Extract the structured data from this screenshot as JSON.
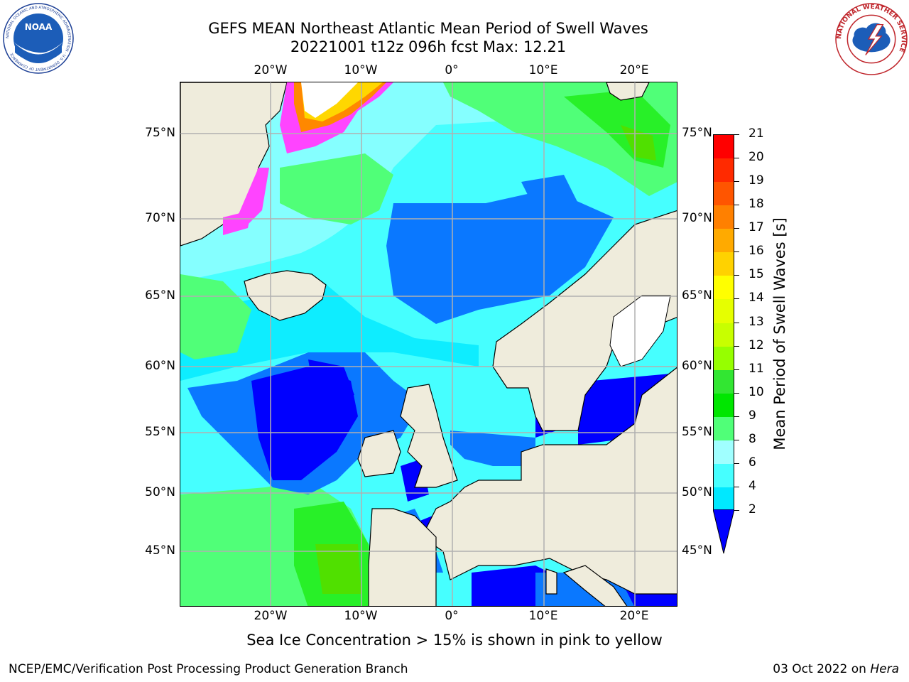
{
  "title": {
    "line1": "GEFS MEAN Northeast Atlantic Mean Period of Swell Waves",
    "line2": "20221001 t12z 096h fcst   Max: 12.21"
  },
  "map": {
    "lon_labels": [
      "20°W",
      "10°W",
      "0°",
      "10°E",
      "20°E"
    ],
    "lat_labels": [
      "75°N",
      "70°N",
      "65°N",
      "60°N",
      "55°N",
      "50°N",
      "45°N"
    ],
    "land_color": "#efecdc",
    "ocean_colors": {
      "lt_2": "#0000ff",
      "2_4": "#0a78ff",
      "4_6": "#00e8ff",
      "6_8": "#46ffff",
      "8_9": "#a0ffff",
      "9_10": "#50ff78",
      "10_11": "#28f028",
      "11_12": "#50e000",
      "12_13": "#b4f000"
    },
    "ice_colors": [
      "#ff44ff",
      "#ff8800",
      "#ffd700",
      "#ffffff"
    ]
  },
  "colorbar": {
    "label": "Mean Period of Swell Waves [s]",
    "ticks": [
      "21",
      "20",
      "19",
      "18",
      "17",
      "16",
      "15",
      "14",
      "13",
      "12",
      "11",
      "10",
      "9",
      "8",
      "6",
      "4",
      "2"
    ],
    "colors": [
      "#ff0000",
      "#ff2a00",
      "#ff5500",
      "#ff8000",
      "#ffaa00",
      "#ffd200",
      "#ffff00",
      "#e6ff00",
      "#c8ff00",
      "#96ff00",
      "#32e632",
      "#00e600",
      "#50ff78",
      "#a0ffff",
      "#46ffff",
      "#00e8ff",
      "#0a78ff",
      "#0000ff"
    ]
  },
  "footnote": "Sea Ice Concentration > 15% is shown in pink to yellow",
  "footer": {
    "left": "NCEP/EMC/Verification Post Processing Product Generation Branch",
    "right_prefix": "03 Oct 2022 on ",
    "right_host": "Hera"
  },
  "logos": {
    "noaa": "NOAA",
    "noaa_ring": "NATIONAL OCEANIC AND ATMOSPHERIC ADMINISTRATION · U.S. DEPARTMENT OF COMMERCE",
    "nws_ring": "NATIONAL WEATHER SERVICE"
  }
}
